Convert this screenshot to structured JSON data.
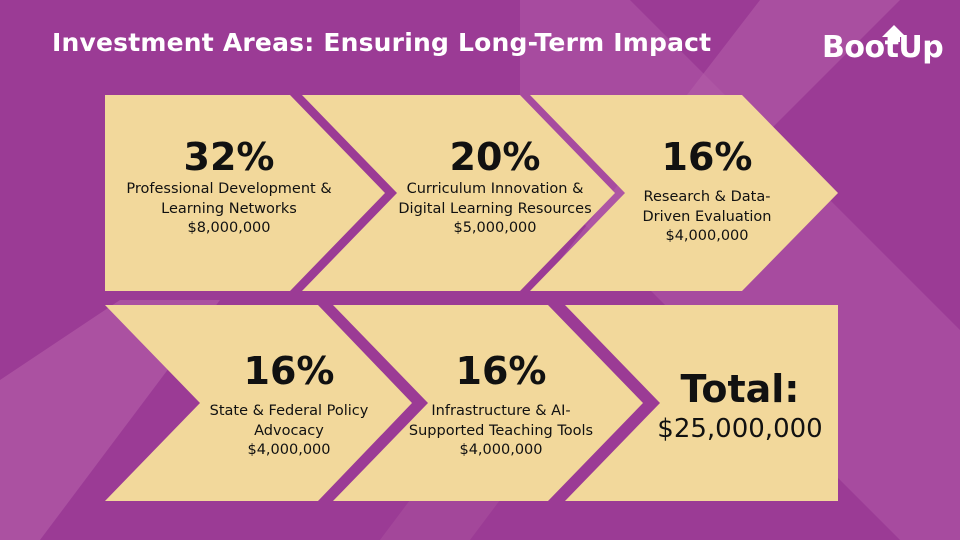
{
  "title": "Investment Areas: Ensuring Long-Term Impact",
  "logo": {
    "text": "BootUp"
  },
  "colors": {
    "background": "#9b3b95",
    "chevron": "#f2d89b",
    "text": "#111111"
  },
  "areas": [
    {
      "percent": "32%",
      "label": "Professional Development & Learning Networks",
      "amount": "$8,000,000"
    },
    {
      "percent": "20%",
      "label": "Curriculum Innovation & Digital Learning Resources",
      "amount": "$5,000,000"
    },
    {
      "percent": "16%",
      "label": "Research & Data-Driven Evaluation",
      "amount": "$4,000,000"
    },
    {
      "percent": "16%",
      "label": "State & Federal Policy Advocacy",
      "amount": "$4,000,000"
    },
    {
      "percent": "16%",
      "label": "Infrastructure & AI-Supported Teaching Tools",
      "amount": "$4,000,000"
    }
  ],
  "total": {
    "label": "Total:",
    "amount": "$25,000,000"
  }
}
